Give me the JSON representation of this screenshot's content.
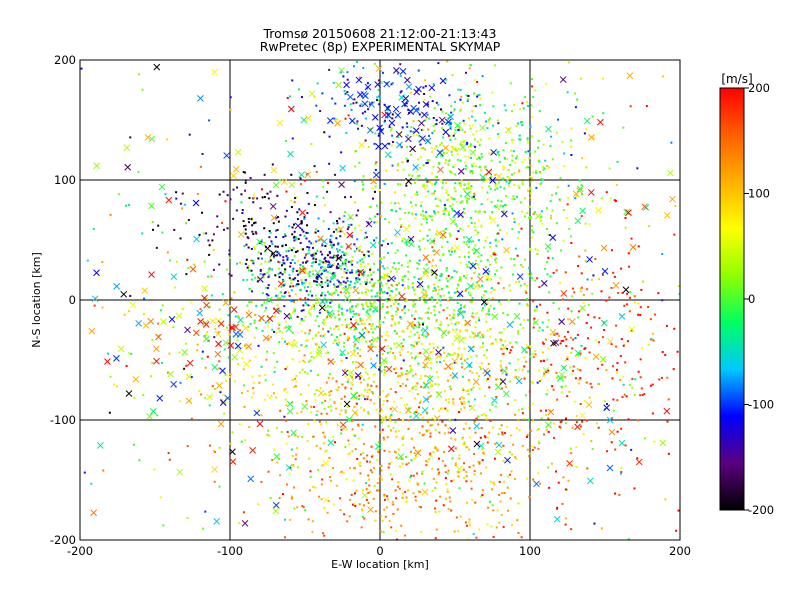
{
  "chart_data": {
    "type": "scatter",
    "title": "Tromsø 20150608 21:12:00-21:13:43",
    "subtitle": "RwPretec (8p) EXPERIMENTAL SKYMAP",
    "xlabel": "E-W location [km]",
    "ylabel": "N-S location [km]",
    "xlim": [
      -200,
      200
    ],
    "ylim": [
      -200,
      200
    ],
    "xticks": [
      "-200",
      "-100",
      "0",
      "100",
      "200"
    ],
    "yticks": [
      "-200",
      "-100",
      "0",
      "100",
      "200"
    ],
    "grid": true,
    "colorbar": {
      "label": "[m/s]",
      "min": -200,
      "max": 200,
      "ticks": [
        "-200",
        "-100",
        "0",
        "100",
        "200"
      ],
      "colormap": [
        "#000000",
        "#5a0080",
        "#0000ff",
        "#00c8ff",
        "#00ff60",
        "#90ff00",
        "#ffff00",
        "#ffb000",
        "#ff6000",
        "#ff0000"
      ]
    },
    "series": [
      {
        "marker": "dot",
        "clusters": [
          {
            "cx": 60,
            "cy": 100,
            "sx": 35,
            "sy": 40,
            "n": 700,
            "vmean": 20,
            "vspread": 40
          },
          {
            "cx": -40,
            "cy": 30,
            "sx": 20,
            "sy": 18,
            "n": 300,
            "vmean": -100,
            "vspread": 50
          },
          {
            "cx": 0,
            "cy": 0,
            "sx": 55,
            "sy": 25,
            "n": 600,
            "vmean": 5,
            "vspread": 30
          },
          {
            "cx": 20,
            "cy": -60,
            "sx": 70,
            "sy": 45,
            "n": 900,
            "vmean": 70,
            "vspread": 50
          },
          {
            "cx": 20,
            "cy": -140,
            "sx": 50,
            "sy": 35,
            "n": 450,
            "vmean": 120,
            "vspread": 40
          },
          {
            "cx": 150,
            "cy": -40,
            "sx": 35,
            "sy": 60,
            "n": 220,
            "vmean": 190,
            "vspread": 15
          },
          {
            "cx": -70,
            "cy": 60,
            "sx": 30,
            "sy": 25,
            "n": 180,
            "vmean": -180,
            "vspread": 25
          },
          {
            "cx": 10,
            "cy": 160,
            "sx": 30,
            "sy": 25,
            "n": 150,
            "vmean": -110,
            "vspread": 40
          },
          {
            "cx": 0,
            "cy": 0,
            "sx": 120,
            "sy": 120,
            "n": 500,
            "vmean": 40,
            "vspread": 110
          }
        ]
      },
      {
        "marker": "cross",
        "clusters": [
          {
            "cx": 0,
            "cy": 0,
            "sx": 110,
            "sy": 110,
            "n": 420,
            "vmean": 20,
            "vspread": 110
          },
          {
            "cx": 10,
            "cy": 165,
            "sx": 20,
            "sy": 20,
            "n": 50,
            "vmean": -110,
            "vspread": 25
          },
          {
            "cx": -110,
            "cy": -25,
            "sx": 20,
            "sy": 15,
            "n": 30,
            "vmean": 150,
            "vspread": 60
          }
        ]
      }
    ]
  }
}
